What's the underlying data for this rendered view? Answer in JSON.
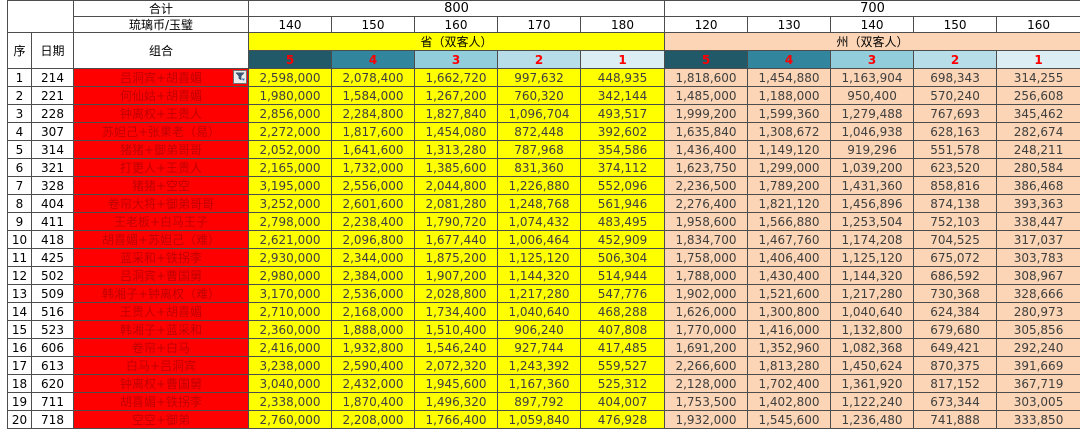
{
  "header": {
    "total_label": "合计",
    "currency_label": "琉璃币/玉璧",
    "group_800": {
      "label": "800",
      "cols": [
        "140",
        "150",
        "160",
        "170",
        "180"
      ]
    },
    "group_700": {
      "label": "700",
      "cols": [
        "120",
        "130",
        "140",
        "150",
        "160"
      ]
    },
    "seq_label": "序",
    "date_label": "日期",
    "combo_label": "组合",
    "sheng_label": "省（双客人）",
    "zhou_label": "州（双客人）",
    "ranks": [
      "5",
      "4",
      "3",
      "2",
      "1"
    ]
  },
  "icons": {
    "filter": "filter-icon"
  },
  "colors": {
    "rank_bg": [
      "#215968",
      "#31859C",
      "#92CDDC",
      "#B7DEE8",
      "#DAEEF3"
    ],
    "rank_text": "#FF0000",
    "sheng_bg": "#FFFF00",
    "zhou_bg": "#FBD5B5",
    "combo_bg": "#FF0000",
    "combo_text": "#C00000"
  },
  "rows": [
    {
      "seq": "1",
      "date": "214",
      "combo": "吕洞宾+胡喜媚",
      "sheng": [
        "2,598,000",
        "2,078,400",
        "1,662,720",
        "997,632",
        "448,935"
      ],
      "zhou": [
        "1,818,600",
        "1,454,880",
        "1,163,904",
        "698,343",
        "314,255"
      ]
    },
    {
      "seq": "2",
      "date": "221",
      "combo": "何仙姑+胡喜媚",
      "sheng": [
        "1,980,000",
        "1,584,000",
        "1,267,200",
        "760,320",
        "342,144"
      ],
      "zhou": [
        "1,485,000",
        "1,188,000",
        "950,400",
        "570,240",
        "256,608"
      ]
    },
    {
      "seq": "3",
      "date": "228",
      "combo": "钟离权+王贵人",
      "sheng": [
        "2,856,000",
        "2,284,800",
        "1,827,840",
        "1,096,704",
        "493,517"
      ],
      "zhou": [
        "1,999,200",
        "1,599,360",
        "1,279,488",
        "767,693",
        "345,462"
      ]
    },
    {
      "seq": "4",
      "date": "307",
      "combo": "苏妲己+张果老（易）",
      "sheng": [
        "2,272,000",
        "1,817,600",
        "1,454,080",
        "872,448",
        "392,602"
      ],
      "zhou": [
        "1,635,840",
        "1,308,672",
        "1,046,938",
        "628,163",
        "282,674"
      ]
    },
    {
      "seq": "5",
      "date": "314",
      "combo": "猪猪+御弟哥哥",
      "sheng": [
        "2,052,000",
        "1,641,600",
        "1,313,280",
        "787,968",
        "354,586"
      ],
      "zhou": [
        "1,436,400",
        "1,149,120",
        "919,296",
        "551,578",
        "248,211"
      ]
    },
    {
      "seq": "6",
      "date": "321",
      "combo": "打更人+王贵人",
      "sheng": [
        "2,165,000",
        "1,732,000",
        "1,385,600",
        "831,360",
        "374,112"
      ],
      "zhou": [
        "1,623,750",
        "1,299,000",
        "1,039,200",
        "623,520",
        "280,584"
      ]
    },
    {
      "seq": "7",
      "date": "328",
      "combo": "猪猪+空空",
      "sheng": [
        "3,195,000",
        "2,556,000",
        "2,044,800",
        "1,226,880",
        "552,096"
      ],
      "zhou": [
        "2,236,500",
        "1,789,200",
        "1,431,360",
        "858,816",
        "386,468"
      ]
    },
    {
      "seq": "8",
      "date": "404",
      "combo": "卷帘大将+御弟哥哥",
      "sheng": [
        "3,252,000",
        "2,601,600",
        "2,081,280",
        "1,248,768",
        "561,946"
      ],
      "zhou": [
        "2,276,400",
        "1,821,120",
        "1,456,896",
        "874,138",
        "393,363"
      ]
    },
    {
      "seq": "9",
      "date": "411",
      "combo": "王老板+白马王子",
      "sheng": [
        "2,798,000",
        "2,238,400",
        "1,790,720",
        "1,074,432",
        "483,495"
      ],
      "zhou": [
        "1,958,600",
        "1,566,880",
        "1,253,504",
        "752,103",
        "338,447"
      ]
    },
    {
      "seq": "10",
      "date": "418",
      "combo": "胡喜媚+苏妲己（难）",
      "sheng": [
        "2,621,000",
        "2,096,800",
        "1,677,440",
        "1,006,464",
        "452,909"
      ],
      "zhou": [
        "1,834,700",
        "1,467,760",
        "1,174,208",
        "704,525",
        "317,037"
      ]
    },
    {
      "seq": "11",
      "date": "425",
      "combo": "蓝采和+铁拐李",
      "sheng": [
        "2,930,000",
        "2,344,000",
        "1,875,200",
        "1,125,120",
        "506,304"
      ],
      "zhou": [
        "1,758,000",
        "1,406,400",
        "1,125,120",
        "675,072",
        "303,783"
      ]
    },
    {
      "seq": "12",
      "date": "502",
      "combo": "吕洞宾+曹国舅",
      "sheng": [
        "2,980,000",
        "2,384,000",
        "1,907,200",
        "1,144,320",
        "514,944"
      ],
      "zhou": [
        "1,788,000",
        "1,430,400",
        "1,144,320",
        "686,592",
        "308,967"
      ]
    },
    {
      "seq": "13",
      "date": "509",
      "combo": "韩湘子+钟离权（难）",
      "sheng": [
        "3,170,000",
        "2,536,000",
        "2,028,800",
        "1,217,280",
        "547,776"
      ],
      "zhou": [
        "1,902,000",
        "1,521,600",
        "1,217,280",
        "730,368",
        "328,666"
      ]
    },
    {
      "seq": "14",
      "date": "516",
      "combo": "王贵人+胡喜媚",
      "sheng": [
        "2,710,000",
        "2,168,000",
        "1,734,400",
        "1,040,640",
        "468,288"
      ],
      "zhou": [
        "1,626,000",
        "1,300,800",
        "1,040,640",
        "624,384",
        "280,973"
      ]
    },
    {
      "seq": "15",
      "date": "523",
      "combo": "韩湘子+蓝采和",
      "sheng": [
        "2,360,000",
        "1,888,000",
        "1,510,400",
        "906,240",
        "407,808"
      ],
      "zhou": [
        "1,770,000",
        "1,416,000",
        "1,132,800",
        "679,680",
        "305,856"
      ]
    },
    {
      "seq": "16",
      "date": "606",
      "combo": "卷帘+白马",
      "sheng": [
        "2,416,000",
        "1,932,800",
        "1,546,240",
        "927,744",
        "417,485"
      ],
      "zhou": [
        "1,691,200",
        "1,352,960",
        "1,082,368",
        "649,421",
        "292,240"
      ]
    },
    {
      "seq": "17",
      "date": "613",
      "combo": "白马+吕洞宾",
      "sheng": [
        "3,238,000",
        "2,590,400",
        "2,072,320",
        "1,243,392",
        "559,527"
      ],
      "zhou": [
        "2,266,600",
        "1,813,280",
        "1,450,624",
        "870,375",
        "391,669"
      ]
    },
    {
      "seq": "18",
      "date": "620",
      "combo": "钟离权+曹国舅",
      "sheng": [
        "3,040,000",
        "2,432,000",
        "1,945,600",
        "1,167,360",
        "525,312"
      ],
      "zhou": [
        "2,128,000",
        "1,702,400",
        "1,361,920",
        "817,152",
        "367,719"
      ]
    },
    {
      "seq": "19",
      "date": "711",
      "combo": "胡喜媚+铁拐李",
      "sheng": [
        "2,338,000",
        "1,870,400",
        "1,496,320",
        "897,792",
        "404,007"
      ],
      "zhou": [
        "1,753,500",
        "1,402,800",
        "1,122,240",
        "673,344",
        "303,005"
      ]
    },
    {
      "seq": "20",
      "date": "718",
      "combo": "空空+御弟",
      "sheng": [
        "2,760,000",
        "2,208,000",
        "1,766,400",
        "1,059,840",
        "476,928"
      ],
      "zhou": [
        "1,932,000",
        "1,545,600",
        "1,236,480",
        "741,888",
        "333,850"
      ]
    }
  ]
}
